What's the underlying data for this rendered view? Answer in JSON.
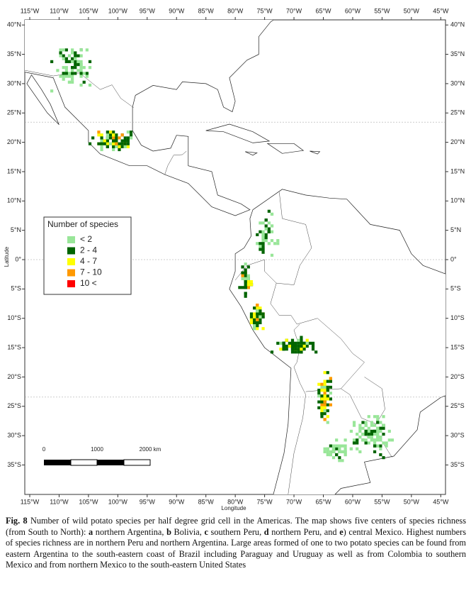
{
  "map": {
    "lon_ticks": [
      "115°W",
      "110°W",
      "105°W",
      "100°W",
      "95°W",
      "90°W",
      "85°W",
      "80°W",
      "75°W",
      "70°W",
      "65°W",
      "60°W",
      "55°W",
      "50°W",
      "45°W"
    ],
    "lat_ticks": [
      "40°N",
      "35°N",
      "30°N",
      "25°N",
      "20°N",
      "15°N",
      "10°N",
      "5°N",
      "0°",
      "5°S",
      "10°S",
      "15°S",
      "20°S",
      "25°S",
      "30°S",
      "35°S"
    ],
    "x_label": "Longitude",
    "y_label": "Latitude",
    "legend": {
      "title": "Number of species",
      "items": [
        {
          "label": "< 2",
          "color": "#99e699"
        },
        {
          "label": "2 - 4",
          "color": "#006400"
        },
        {
          "label": "4 - 7",
          "color": "#ffff00"
        },
        {
          "label": "7 - 10",
          "color": "#ff9900"
        },
        {
          "label": "10 <",
          "color": "#ff0000"
        }
      ]
    },
    "scale_bar": [
      "0",
      "1000",
      "2000 km"
    ]
  },
  "caption": [
    {
      "text": "Fig. 8",
      "bold": true
    },
    {
      "text": " Number of wild potato species per half degree grid cell in the Americas. The map shows five centers of species richness (from South to North): ",
      "bold": false
    },
    {
      "text": "a",
      "bold": true
    },
    {
      "text": " northern Argentina, ",
      "bold": false
    },
    {
      "text": "b",
      "bold": true
    },
    {
      "text": " Bolivia, ",
      "bold": false
    },
    {
      "text": "c",
      "bold": true
    },
    {
      "text": " southern Peru, ",
      "bold": false
    },
    {
      "text": "d",
      "bold": true
    },
    {
      "text": " northern Peru, and ",
      "bold": false
    },
    {
      "text": "e",
      "bold": true
    },
    {
      "text": ") central Mexico. Highest numbers of species richness are in northern Peru and northern Argentina. Large areas formed of one to two potato species can be found from eastern Argentina to the south-eastern coast of Brazil including Paraguay and Uruguay as well as from Colombia to southern Mexico and from northern Mexico to the south-eastern United States",
      "bold": false
    }
  ]
}
